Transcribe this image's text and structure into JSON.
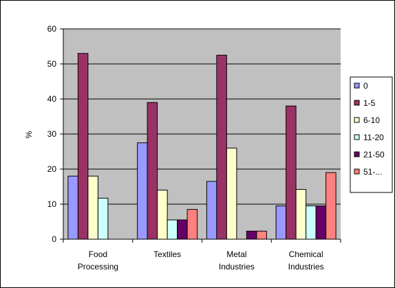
{
  "chart_data": {
    "type": "bar",
    "title": "",
    "xlabel": "",
    "ylabel": "%",
    "ylim": [
      0,
      60
    ],
    "yticks": [
      0,
      10,
      20,
      30,
      40,
      50,
      60
    ],
    "grid": true,
    "legend_position": "right",
    "categories": [
      [
        "Food",
        "Processing"
      ],
      [
        "Textiles"
      ],
      [
        "Metal",
        "Industries"
      ],
      [
        "Chemical",
        "Industries"
      ]
    ],
    "series": [
      {
        "name": "0",
        "color": "#9999ff",
        "values": [
          18,
          27.5,
          16.5,
          9.5
        ]
      },
      {
        "name": "1-5",
        "color": "#993366",
        "values": [
          53,
          39,
          52.5,
          38
        ]
      },
      {
        "name": "6-10",
        "color": "#ffffcc",
        "values": [
          18,
          14,
          26,
          14.2
        ]
      },
      {
        "name": "11-20",
        "color": "#ccffff",
        "values": [
          11.7,
          5.5,
          null,
          9.5
        ]
      },
      {
        "name": "21-50",
        "color": "#660066",
        "values": [
          null,
          5.5,
          2.3,
          9.5
        ]
      },
      {
        "name": "51-...",
        "color": "#ff8080",
        "values": [
          null,
          8.5,
          2.3,
          19
        ]
      }
    ]
  }
}
